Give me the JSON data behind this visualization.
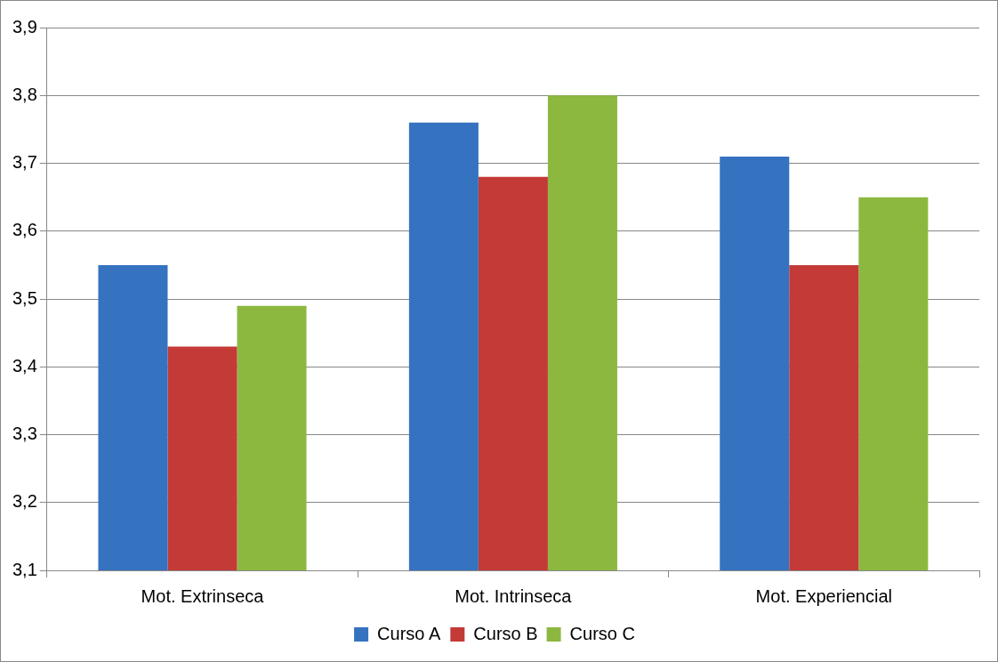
{
  "chart_data": {
    "type": "bar",
    "categories": [
      "Mot. Extrinseca",
      "Mot. Intrinseca",
      "Mot. Experiencial"
    ],
    "series": [
      {
        "name": "Curso A",
        "color": "#3572c0",
        "values": [
          3.55,
          3.76,
          3.71
        ]
      },
      {
        "name": "Curso B",
        "color": "#c33a36",
        "values": [
          3.43,
          3.68,
          3.55
        ]
      },
      {
        "name": "Curso C",
        "color": "#8cb840",
        "values": [
          3.49,
          3.8,
          3.65
        ]
      }
    ],
    "ylim": [
      3.1,
      3.9
    ],
    "yticks": [
      {
        "value": 3.1,
        "label": "3,1"
      },
      {
        "value": 3.2,
        "label": "3,2"
      },
      {
        "value": 3.3,
        "label": "3,3"
      },
      {
        "value": 3.4,
        "label": "3,4"
      },
      {
        "value": 3.5,
        "label": "3,5"
      },
      {
        "value": 3.6,
        "label": "3,6"
      },
      {
        "value": 3.7,
        "label": "3,7"
      },
      {
        "value": 3.8,
        "label": "3,8"
      },
      {
        "value": 3.9,
        "label": "3,9"
      }
    ],
    "grid": "y",
    "legend": "bottom"
  }
}
